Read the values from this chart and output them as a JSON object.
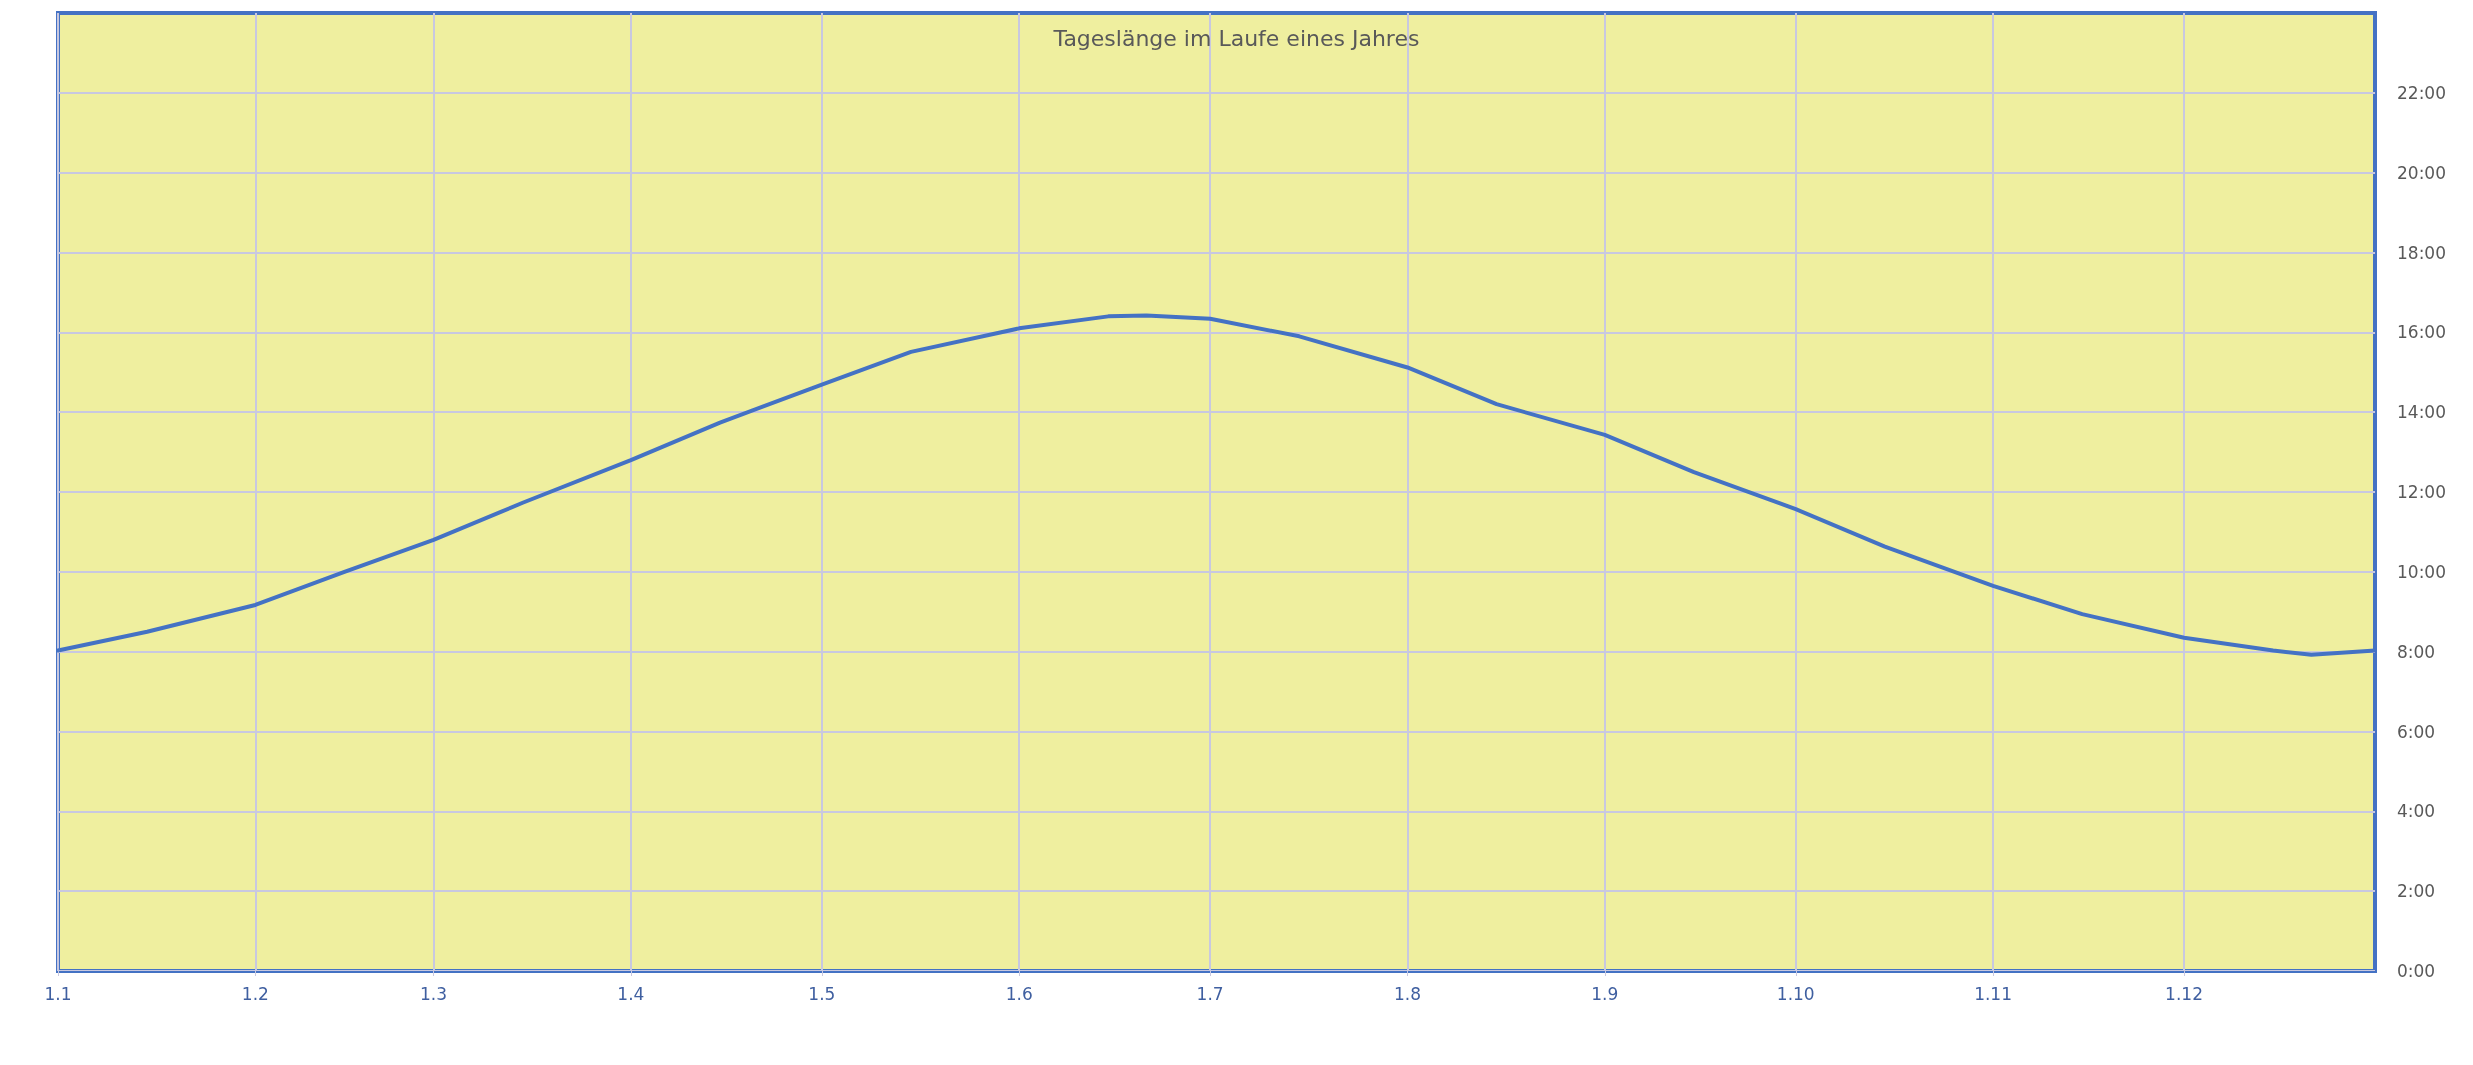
{
  "chart_data": {
    "type": "line",
    "title": "Tageslänge im Laufe eines Jahres",
    "x": [
      "--01-01",
      "--01-15",
      "--02-01",
      "--02-15",
      "--03-01",
      "--03-15",
      "--04-01",
      "--04-15",
      "--05-01",
      "--05-15",
      "--06-01",
      "--06-15",
      "--06-21",
      "--07-01",
      "--07-15",
      "--08-01",
      "--08-15",
      "--09-01",
      "--09-15",
      "--10-01",
      "--10-15",
      "--11-01",
      "--11-15",
      "--12-01",
      "--12-15",
      "--12-21",
      "--12-31"
    ],
    "series": [
      {
        "color": "#4472c4",
        "values": [
          8.03,
          8.5,
          9.17,
          10.0,
          10.8,
          11.73,
          12.8,
          13.74,
          14.69,
          15.51,
          16.1,
          16.4,
          16.42,
          16.34,
          15.9,
          15.12,
          14.2,
          13.43,
          12.5,
          11.57,
          10.63,
          9.65,
          8.94,
          8.35,
          8.03,
          7.92,
          8.03
        ]
      }
    ],
    "xlim": [
      "--01-01",
      "--12-31"
    ],
    "xticks": [
      {
        "value": "--01-01",
        "label": "1.1"
      },
      {
        "value": "--02-01",
        "label": "1.2"
      },
      {
        "value": "--03-01",
        "label": "1.3"
      },
      {
        "value": "--04-01",
        "label": "1.4"
      },
      {
        "value": "--05-01",
        "label": "1.5"
      },
      {
        "value": "--06-01",
        "label": "1.6"
      },
      {
        "value": "--07-01",
        "label": "1.7"
      },
      {
        "value": "--08-01",
        "label": "1.8"
      },
      {
        "value": "--09-01",
        "label": "1.9"
      },
      {
        "value": "--10-01",
        "label": "1.10"
      },
      {
        "value": "--11-01",
        "label": "1.11"
      },
      {
        "value": "--12-01",
        "label": "1.12"
      }
    ],
    "ylim": [
      0,
      24
    ],
    "yticks": [
      {
        "value": 0,
        "label": "0:00"
      },
      {
        "value": 2,
        "label": "2:00"
      },
      {
        "value": 4,
        "label": "4:00"
      },
      {
        "value": 6,
        "label": "6:00"
      },
      {
        "value": 8,
        "label": "8:00"
      },
      {
        "value": 10,
        "label": "10:00"
      },
      {
        "value": 12,
        "label": "12:00"
      },
      {
        "value": 14,
        "label": "14:00"
      },
      {
        "value": 16,
        "label": "16:00"
      },
      {
        "value": 18,
        "label": "18:00"
      },
      {
        "value": 20,
        "label": "20:00"
      },
      {
        "value": 22,
        "label": "22:00"
      }
    ],
    "grid": true,
    "marker": "none",
    "line_style": "solid"
  }
}
